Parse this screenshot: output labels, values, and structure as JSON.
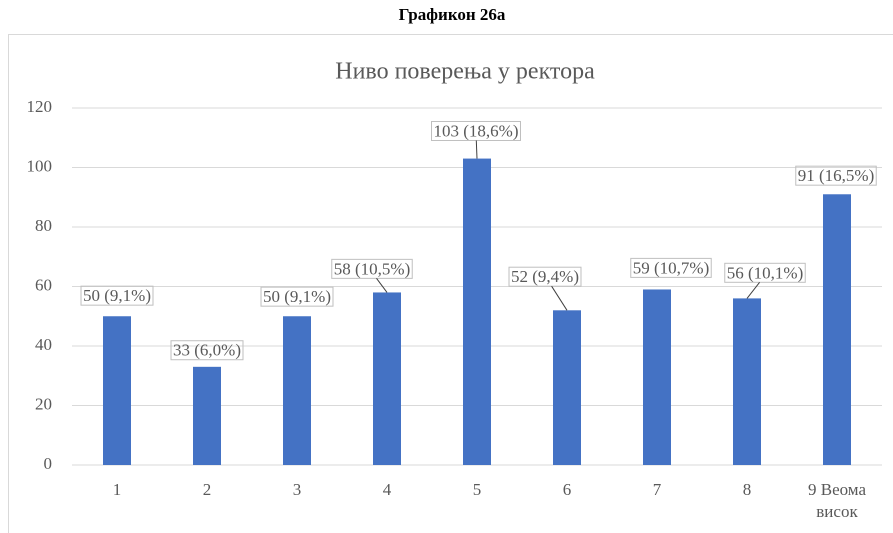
{
  "heading": "Графикон 26а",
  "chart_data": {
    "type": "bar",
    "title": "Ниво поверења у ректора",
    "categories": [
      "1",
      "2",
      "3",
      "4",
      "5",
      "6",
      "7",
      "8",
      "9 Веома висок"
    ],
    "values": [
      50,
      33,
      50,
      58,
      103,
      52,
      59,
      56,
      91
    ],
    "value_labels": [
      "50 (9,1%)",
      "33 (6,0%)",
      "50 (9,1%)",
      "58 (10,5%)",
      "103 (18,6%)",
      "52 (9,4%)",
      "59 (10,7%)",
      "56 (10,1%)",
      "91 (16,5%)"
    ],
    "color": "#4472c4",
    "ylim": [
      0,
      120
    ],
    "yticks": [
      0,
      20,
      40,
      60,
      80,
      100,
      120
    ],
    "grid": true
  }
}
